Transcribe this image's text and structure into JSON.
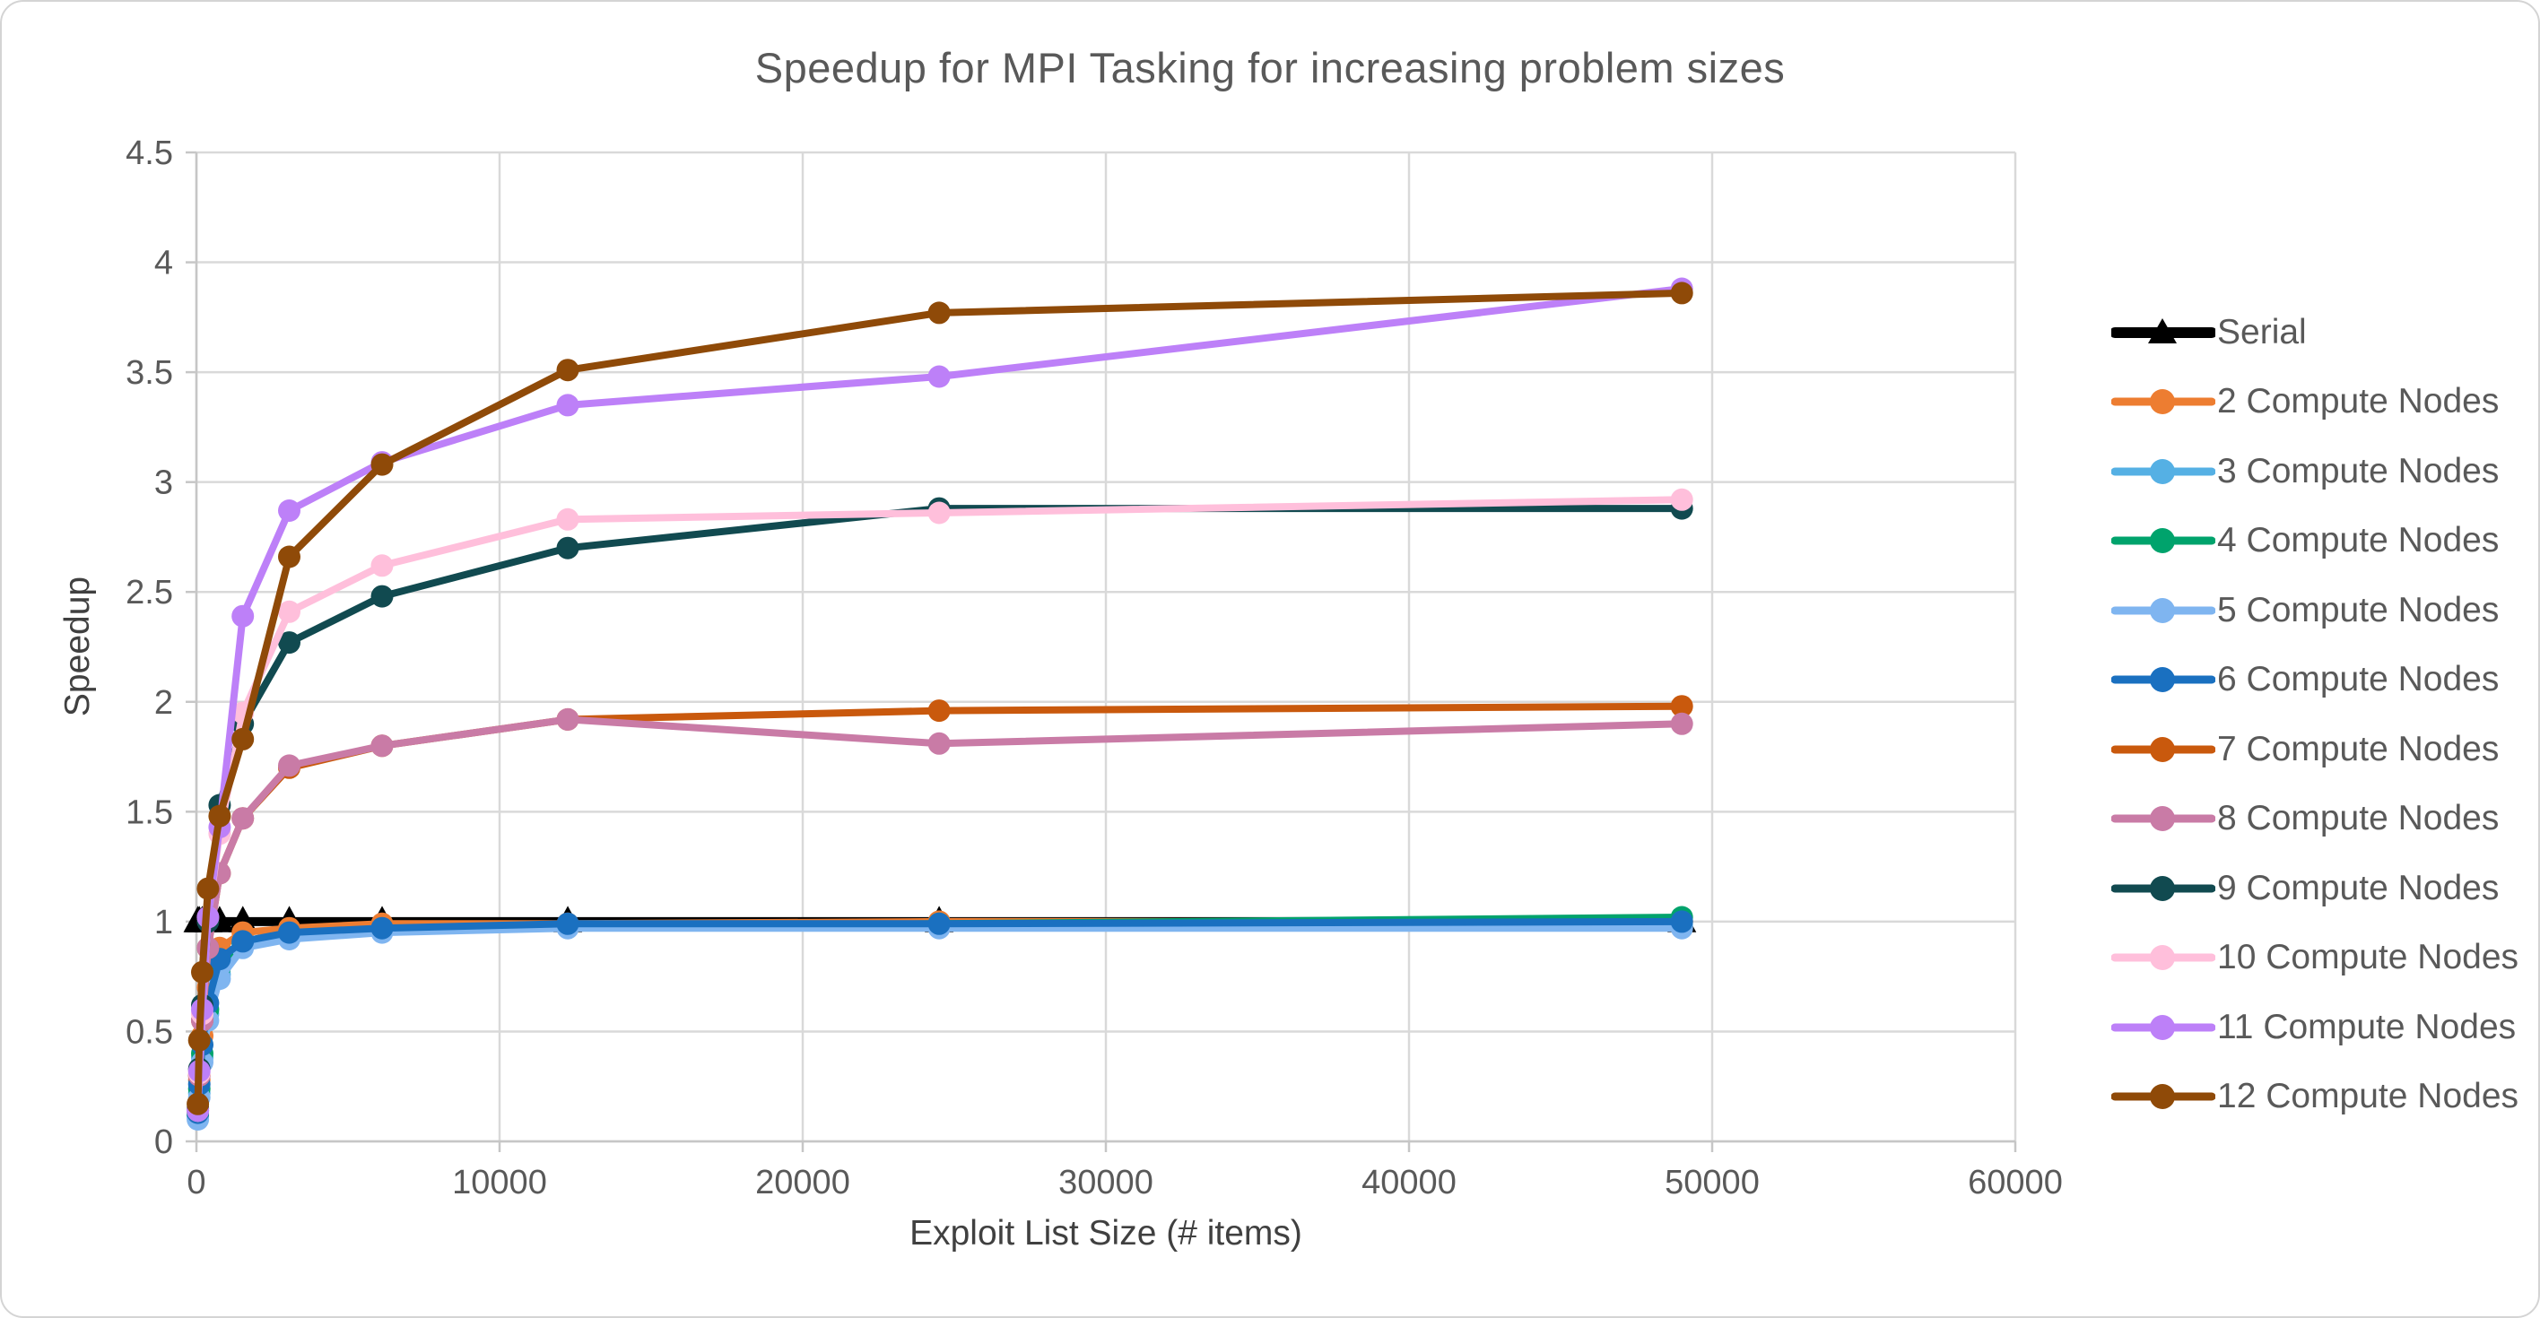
{
  "figure": {
    "background": "#FFFFFF",
    "border_color": "#D4D4D4"
  },
  "chart_data": {
    "type": "line",
    "title": "Speedup for MPI Tasking for increasing problem sizes",
    "xlabel": "Exploit List Size (# items)",
    "ylabel": "Speedup",
    "xlim": [
      0,
      60000
    ],
    "ylim": [
      0,
      4.5
    ],
    "grid": true,
    "legend_position": "right",
    "text_color": "#595959",
    "grid_color": "#D9D9D9",
    "axis_color": "#C6C6C6",
    "x_ticks": {
      "values": [
        0,
        10000,
        20000,
        30000,
        40000,
        50000,
        60000
      ],
      "labels": [
        "0",
        "10000",
        "20000",
        "30000",
        "40000",
        "50000",
        "60000"
      ]
    },
    "y_ticks": {
      "values": [
        0,
        0.5,
        1,
        1.5,
        2,
        2.5,
        3,
        3.5,
        4,
        4.5
      ],
      "labels": [
        "0",
        "0.5",
        "1",
        "1.5",
        "2",
        "2.5",
        "3",
        "3.5",
        "4",
        "4.5"
      ]
    },
    "x": [
      48,
      96,
      191,
      383,
      766,
      1531,
      3063,
      6125,
      12250,
      24500,
      49000
    ],
    "series": [
      {
        "name": "Serial",
        "color": "#000000",
        "marker": "triangle",
        "values": [
          1.0,
          1.0,
          1.0,
          1.0,
          1.0,
          1.0,
          1.0,
          1.0,
          1.0,
          1.0,
          1.0
        ]
      },
      {
        "name": "2 Compute Nodes",
        "color": "#ED7D31",
        "marker": "circle",
        "values": [
          0.14,
          0.28,
          0.48,
          0.7,
          0.88,
          0.95,
          0.97,
          0.99,
          0.99,
          1.0,
          1.0
        ]
      },
      {
        "name": "3 Compute Nodes",
        "color": "#55B0E4",
        "marker": "circle",
        "values": [
          0.11,
          0.22,
          0.38,
          0.58,
          0.76,
          0.9,
          0.94,
          0.96,
          0.98,
          0.98,
          0.98
        ]
      },
      {
        "name": "4 Compute Nodes",
        "color": "#00A36C",
        "marker": "circle",
        "values": [
          0.12,
          0.24,
          0.4,
          0.6,
          0.79,
          0.9,
          0.94,
          0.96,
          0.98,
          0.99,
          1.02
        ]
      },
      {
        "name": "5 Compute Nodes",
        "color": "#7FB5F0",
        "marker": "circle",
        "values": [
          0.1,
          0.2,
          0.36,
          0.55,
          0.74,
          0.88,
          0.92,
          0.95,
          0.97,
          0.97,
          0.97
        ]
      },
      {
        "name": "6 Compute Nodes",
        "color": "#1A70C0",
        "marker": "circle",
        "values": [
          0.13,
          0.26,
          0.44,
          0.63,
          0.83,
          0.91,
          0.95,
          0.97,
          0.99,
          0.99,
          1.0
        ]
      },
      {
        "name": "7 Compute Nodes",
        "color": "#C9590D",
        "marker": "circle",
        "values": [
          0.14,
          0.3,
          0.55,
          0.88,
          1.22,
          1.47,
          1.7,
          1.8,
          1.92,
          1.96,
          1.98
        ]
      },
      {
        "name": "8 Compute Nodes",
        "color": "#C97BA6",
        "marker": "circle",
        "values": [
          0.14,
          0.3,
          0.55,
          0.88,
          1.22,
          1.47,
          1.71,
          1.8,
          1.92,
          1.81,
          1.9
        ]
      },
      {
        "name": "9 Compute Nodes",
        "color": "#114A50",
        "marker": "circle",
        "values": [
          0.15,
          0.33,
          0.62,
          1.0,
          1.53,
          1.9,
          2.27,
          2.48,
          2.7,
          2.88,
          2.88
        ]
      },
      {
        "name": "10 Compute Nodes",
        "color": "#FFBFDB",
        "marker": "circle",
        "values": [
          0.14,
          0.31,
          0.58,
          1.02,
          1.4,
          1.95,
          2.41,
          2.62,
          2.83,
          2.86,
          2.92
        ]
      },
      {
        "name": "11 Compute Nodes",
        "color": "#BD80F8",
        "marker": "circle",
        "values": [
          0.14,
          0.32,
          0.6,
          1.02,
          1.43,
          2.39,
          2.87,
          3.09,
          3.35,
          3.48,
          3.88
        ]
      },
      {
        "name": "12 Compute Nodes",
        "color": "#8F4A08",
        "marker": "circle",
        "values": [
          0.17,
          0.46,
          0.77,
          1.15,
          1.48,
          1.83,
          2.66,
          3.08,
          3.51,
          3.77,
          3.86
        ]
      }
    ]
  }
}
